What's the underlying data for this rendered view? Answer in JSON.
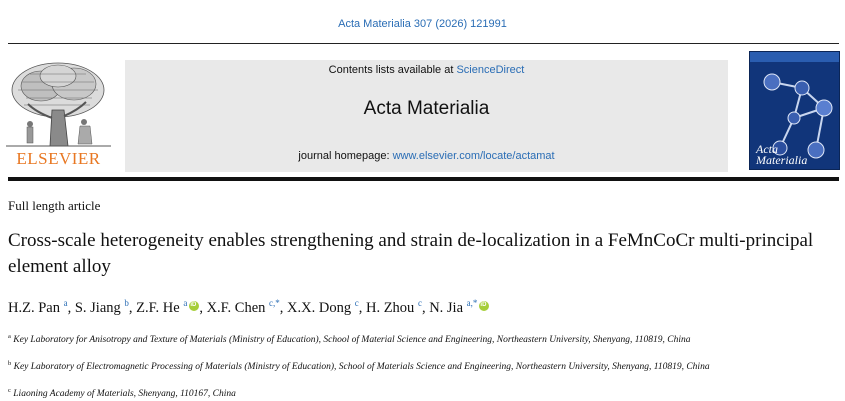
{
  "header": {
    "citation": "Acta Materialia 307 (2026) 121991",
    "contents_prefix": "Contents lists available at ",
    "contents_link": "ScienceDirect",
    "journal_title": "Acta Materialia",
    "homepage_prefix": "journal homepage: ",
    "homepage_link": "www.elsevier.com/locate/actamat",
    "publisher_logo_text": "ELSEVIER",
    "cover_title_line1": "Acta",
    "cover_title_line2": "Materialia"
  },
  "article": {
    "type": "Full length article",
    "title": "Cross-scale heterogeneity enables strengthening and strain de-localization in a FeMnCoCr multi-principal element alloy",
    "authors": [
      {
        "name": "H.Z. Pan",
        "aff": "a",
        "orcid": false
      },
      {
        "name": "S. Jiang",
        "aff": "b",
        "orcid": false
      },
      {
        "name": "Z.F. He",
        "aff": "a",
        "orcid": true
      },
      {
        "name": "X.F. Chen",
        "aff": "c,*",
        "orcid": false
      },
      {
        "name": "X.X. Dong",
        "aff": "c",
        "orcid": false
      },
      {
        "name": "H. Zhou",
        "aff": "c",
        "orcid": false
      },
      {
        "name": "N. Jia",
        "aff": "a,*",
        "orcid": true
      }
    ],
    "affiliations": [
      {
        "mark": "a",
        "text": "Key Laboratory for Anisotropy and Texture of Materials (Ministry of Education), School of Material Science and Engineering, Northeastern University, Shenyang, 110819, China"
      },
      {
        "mark": "b",
        "text": "Key Laboratory of Electromagnetic Processing of Materials (Ministry of Education), School of Materials Science and Engineering, Northeastern University, Shenyang, 110819, China"
      },
      {
        "mark": "c",
        "text": "Liaoning Academy of Materials, Shenyang, 110167, China"
      }
    ]
  },
  "colors": {
    "link": "#2a6db5",
    "elsevier_orange": "#e87722",
    "cover_blue": "#11357a",
    "banner_grey": "#e9e9e9",
    "orcid_green": "#a6ce39"
  }
}
